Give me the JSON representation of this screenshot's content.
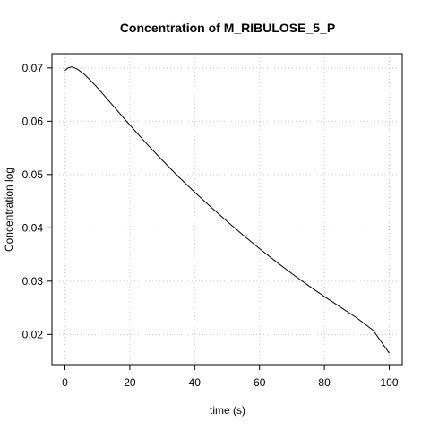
{
  "chart_data": {
    "type": "line",
    "title": "Concentration of M_RIBULOSE_5_P",
    "xlabel": "time (s)",
    "ylabel": "Concentration log",
    "xlim": [
      0,
      100
    ],
    "ylim": [
      0.0165,
      0.0705
    ],
    "x_ticks": [
      0,
      20,
      40,
      60,
      80,
      100
    ],
    "y_ticks": [
      0.02,
      0.03,
      0.04,
      0.05,
      0.06,
      0.07
    ],
    "x_tick_labels": [
      "0",
      "20",
      "40",
      "60",
      "80",
      "100"
    ],
    "y_tick_labels": [
      "0.02",
      "0.03",
      "0.04",
      "0.05",
      "0.06",
      "0.07"
    ],
    "grid": true,
    "legend": "none",
    "series": [
      {
        "color": "#000000",
        "x": [
          0,
          1,
          2,
          3,
          4,
          6,
          8,
          10,
          15,
          20,
          25,
          30,
          35,
          40,
          45,
          50,
          55,
          60,
          65,
          70,
          75,
          80,
          85,
          90,
          95,
          100
        ],
        "y": [
          0.0695,
          0.07,
          0.0702,
          0.07,
          0.0697,
          0.0688,
          0.0676,
          0.0663,
          0.0628,
          0.0593,
          0.0559,
          0.0527,
          0.0496,
          0.0467,
          0.0439,
          0.0412,
          0.0386,
          0.0361,
          0.0337,
          0.0314,
          0.0292,
          0.0271,
          0.0251,
          0.0231,
          0.0208,
          0.0165
        ]
      }
    ]
  }
}
